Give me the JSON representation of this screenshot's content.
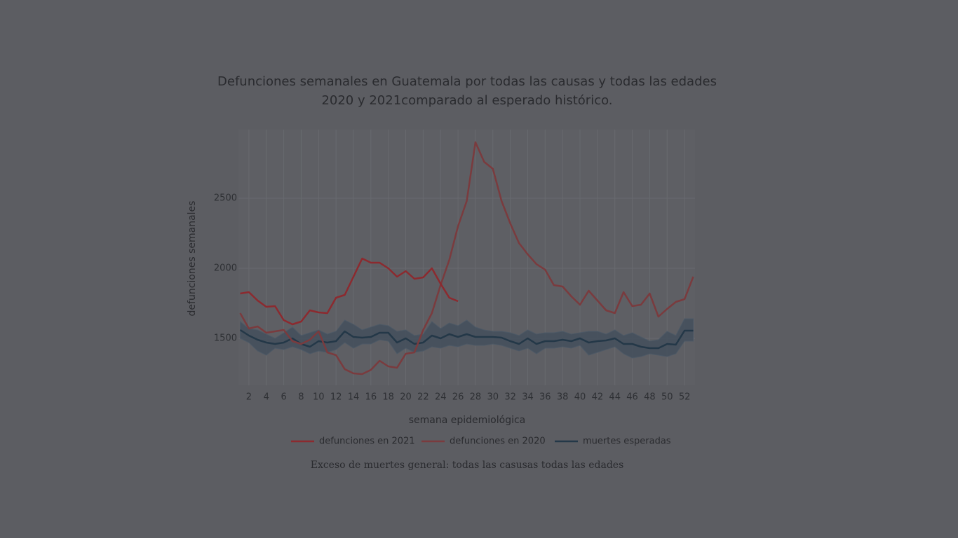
{
  "chart_data": {
    "type": "line",
    "title": "Defunciones semanales en Guatemala por todas las causas y todas las edades",
    "subtitle": "2020 y 2021comparado al esperado histórico.",
    "xlabel": "semana epidemiológica",
    "ylabel": "defunciones semanales",
    "x": [
      1,
      2,
      3,
      4,
      5,
      6,
      7,
      8,
      9,
      10,
      11,
      12,
      13,
      14,
      15,
      16,
      17,
      18,
      19,
      20,
      21,
      22,
      23,
      24,
      25,
      26,
      27,
      28,
      29,
      30,
      31,
      32,
      33,
      34,
      35,
      36,
      37,
      38,
      39,
      40,
      41,
      42,
      43,
      44,
      45,
      46,
      47,
      48,
      49,
      50,
      51,
      52,
      53
    ],
    "xlim": [
      0.8,
      53.2
    ],
    "xticks": [
      2,
      4,
      6,
      8,
      10,
      12,
      14,
      16,
      18,
      20,
      22,
      24,
      26,
      28,
      30,
      32,
      34,
      36,
      38,
      40,
      42,
      44,
      46,
      48,
      50,
      52
    ],
    "ylim": [
      1165,
      2990
    ],
    "yticks": [
      1500,
      2000,
      2500
    ],
    "grid": true,
    "legend": "bottom",
    "series": [
      {
        "name": "defunciones en 2021",
        "color": "#8c2a2f",
        "values": [
          1820,
          1830,
          1770,
          1725,
          1730,
          1630,
          1600,
          1620,
          1700,
          1685,
          1680,
          1790,
          1810,
          1940,
          2070,
          2040,
          2040,
          2000,
          1940,
          1980,
          1925,
          1935,
          2000,
          1890,
          1790,
          1765,
          null,
          null,
          null,
          null,
          null,
          null,
          null,
          null,
          null,
          null,
          null,
          null,
          null,
          null,
          null,
          null,
          null,
          null,
          null,
          null,
          null,
          null,
          null,
          null,
          null,
          null,
          null
        ]
      },
      {
        "name": "defunciones en 2020",
        "color": "#7a3b3e",
        "values": [
          1680,
          1570,
          1585,
          1540,
          1550,
          1560,
          1480,
          1460,
          1490,
          1550,
          1400,
          1380,
          1280,
          1250,
          1245,
          1275,
          1340,
          1300,
          1290,
          1390,
          1400,
          1560,
          1680,
          1880,
          2060,
          2300,
          2480,
          2900,
          2760,
          2710,
          2480,
          2320,
          2180,
          2100,
          2030,
          1990,
          1880,
          1870,
          1800,
          1740,
          1840,
          1770,
          1700,
          1680,
          1830,
          1730,
          1740,
          1820,
          1655,
          1710,
          1760,
          1780,
          1940
        ]
      },
      {
        "name": "muertes esperadas",
        "color": "#243848",
        "values": [
          1560,
          1520,
          1490,
          1470,
          1460,
          1470,
          1500,
          1460,
          1440,
          1480,
          1470,
          1480,
          1550,
          1510,
          1505,
          1510,
          1540,
          1540,
          1470,
          1500,
          1460,
          1470,
          1520,
          1500,
          1530,
          1510,
          1530,
          1510,
          1510,
          1510,
          1505,
          1480,
          1460,
          1500,
          1460,
          1480,
          1480,
          1490,
          1480,
          1500,
          1470,
          1480,
          1485,
          1500,
          1460,
          1460,
          1440,
          1430,
          1430,
          1460,
          1455,
          1555,
          1555
        ]
      }
    ],
    "band": {
      "color": "#434f5c",
      "upper": [
        1620,
        1570,
        1560,
        1530,
        1500,
        1540,
        1580,
        1520,
        1540,
        1560,
        1530,
        1550,
        1630,
        1600,
        1560,
        1580,
        1600,
        1590,
        1550,
        1560,
        1520,
        1530,
        1620,
        1570,
        1610,
        1590,
        1630,
        1580,
        1560,
        1550,
        1550,
        1540,
        1520,
        1560,
        1530,
        1540,
        1540,
        1550,
        1530,
        1540,
        1550,
        1550,
        1530,
        1560,
        1520,
        1540,
        1510,
        1480,
        1490,
        1550,
        1520,
        1640,
        1640
      ],
      "lower": [
        1500,
        1470,
        1410,
        1380,
        1430,
        1420,
        1440,
        1420,
        1390,
        1410,
        1400,
        1420,
        1470,
        1430,
        1460,
        1460,
        1490,
        1480,
        1390,
        1430,
        1400,
        1410,
        1440,
        1430,
        1450,
        1440,
        1460,
        1450,
        1450,
        1460,
        1450,
        1430,
        1410,
        1430,
        1390,
        1430,
        1430,
        1440,
        1430,
        1450,
        1380,
        1400,
        1420,
        1440,
        1390,
        1360,
        1370,
        1390,
        1380,
        1370,
        1390,
        1480,
        1480
      ]
    }
  },
  "caption": "Exceso de muertes general: todas las casusas todas las edades"
}
